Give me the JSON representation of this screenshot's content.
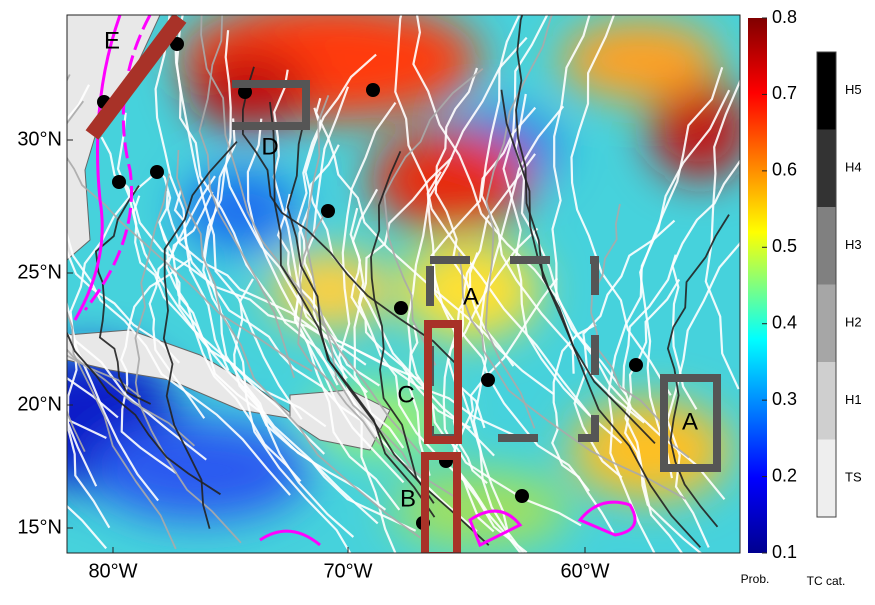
{
  "map": {
    "lon_labels": [
      "80°W",
      "70°W",
      "60°W"
    ],
    "lat_labels": [
      "30°N",
      "25°N",
      "20°N",
      "15°N"
    ],
    "regions": [
      "E",
      "D",
      "A",
      "C",
      "A",
      "B"
    ],
    "colorbar": {
      "ticks": [
        0.8,
        0.7,
        0.6,
        0.5,
        0.4,
        0.3,
        0.2,
        0.1
      ],
      "label": "Prob."
    },
    "category_bar": {
      "labels": [
        "H5",
        "H4",
        "H3",
        "H2",
        "H1",
        "TS"
      ],
      "label": "TC cat."
    }
  }
}
